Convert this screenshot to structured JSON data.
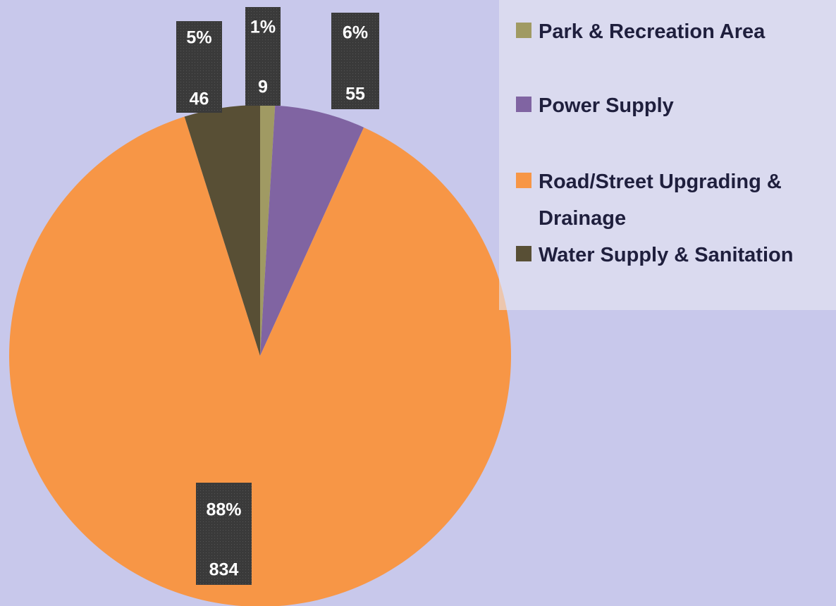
{
  "chart_data": {
    "type": "pie",
    "categories": [
      "Park & Recreation Area",
      "Power Supply",
      "Road/Street Upgrading & Drainage",
      "Water Supply & Sanitation"
    ],
    "values": [
      9,
      55,
      834,
      46
    ],
    "percent_labels": [
      "1%",
      "6%",
      "88%",
      "5%"
    ],
    "colors": [
      "#a09a63",
      "#8064a2",
      "#f79646",
      "#584f35"
    ],
    "legend": "right"
  }
}
